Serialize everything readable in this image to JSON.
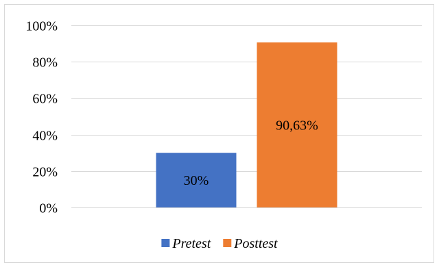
{
  "chart_data": {
    "type": "bar",
    "categories": [
      "Pretest",
      "Posttest"
    ],
    "values": [
      30,
      90.63
    ],
    "data_labels": [
      "30%",
      "90,63%"
    ],
    "colors": [
      "#4472C4",
      "#ED7D31"
    ],
    "ylim": [
      0,
      100
    ],
    "y_ticks": [
      0,
      20,
      40,
      60,
      80,
      100
    ],
    "y_tick_labels": [
      "0%",
      "20%",
      "40%",
      "60%",
      "80%",
      "100%"
    ],
    "grid": true,
    "legend": {
      "placement": "bottom",
      "entries": [
        {
          "label": "Pretest",
          "color": "#4472C4"
        },
        {
          "label": "Posttest",
          "color": "#ED7D31"
        }
      ]
    },
    "title": "",
    "xlabel": "",
    "ylabel": ""
  }
}
